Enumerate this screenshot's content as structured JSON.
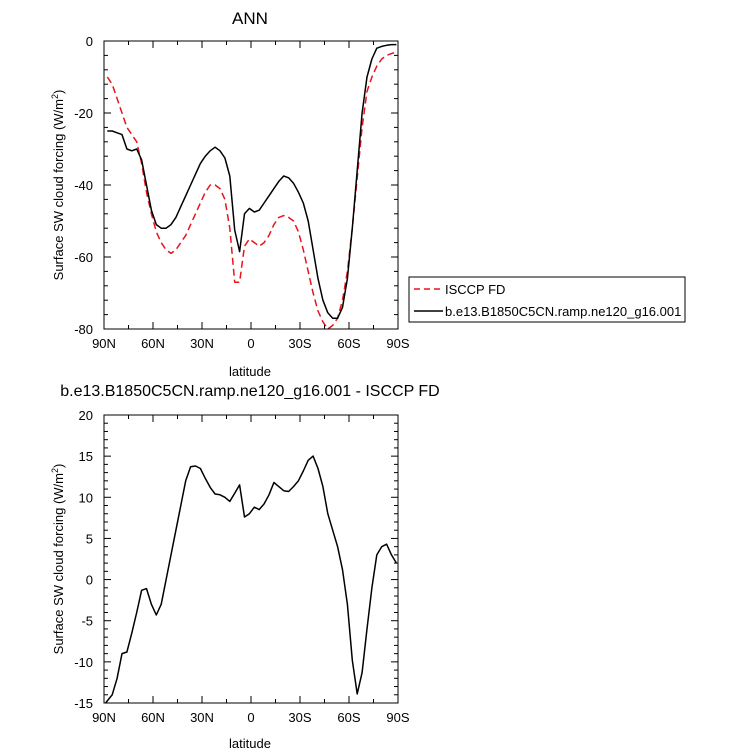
{
  "chart_data": [
    {
      "type": "line",
      "title": "ANN",
      "xlabel": "latitude",
      "ylabel": "Surface SW cloud forcing (W/m",
      "ylabel_sup": "2",
      "ylabel_close": ")",
      "xlim": [
        90,
        -90
      ],
      "ylim": [
        -80,
        0
      ],
      "xticks": [
        90,
        60,
        30,
        0,
        -30,
        -60,
        -90
      ],
      "xtick_labels": [
        "90N",
        "60N",
        "30N",
        "0",
        "30S",
        "60S",
        "90S"
      ],
      "yticks": [
        0,
        -20,
        -40,
        -60,
        -80
      ],
      "ytick_labels": [
        "0",
        "-20",
        "-40",
        "-60",
        "-80"
      ],
      "grid": false,
      "legend_position": "right",
      "series": [
        {
          "name": "ISCCP FD",
          "color": "#e8141c",
          "dash": "dashed",
          "x": [
            88,
            85,
            82,
            79,
            76,
            73,
            70,
            67,
            64,
            61,
            58,
            55,
            52,
            49,
            46,
            43,
            40,
            37,
            34,
            31,
            28,
            25,
            22,
            19,
            16,
            13,
            10,
            7,
            4,
            1,
            -2,
            -5,
            -8,
            -11,
            -14,
            -17,
            -20,
            -23,
            -26,
            -29,
            -32,
            -35,
            -38,
            -41,
            -44,
            -47,
            -50,
            -53,
            -56,
            -59,
            -62,
            -65,
            -68,
            -71,
            -74,
            -77,
            -80,
            -83,
            -86,
            -89
          ],
          "y": [
            -10,
            -12,
            -16,
            -20,
            -24,
            -26,
            -28,
            -34,
            -42,
            -48,
            -53,
            -56,
            -58,
            -59,
            -58,
            -56,
            -54,
            -51,
            -48,
            -45,
            -42,
            -40,
            -40,
            -41,
            -44,
            -52,
            -67,
            -67,
            -57,
            -55,
            -56,
            -57,
            -56,
            -54,
            -51,
            -49,
            -48.5,
            -49,
            -50,
            -53,
            -58,
            -64,
            -70,
            -75,
            -78,
            -80,
            -79,
            -77,
            -72,
            -64,
            -52,
            -38,
            -24,
            -14,
            -10,
            -7,
            -5,
            -4,
            -3.5,
            -3
          ]
        },
        {
          "name": "b.e13.B1850C5CN.ramp.ne120_g16.001",
          "color": "#000000",
          "dash": "solid",
          "x": [
            88,
            85,
            82,
            79,
            76,
            73,
            70,
            67,
            64,
            61,
            58,
            55,
            52,
            49,
            46,
            43,
            40,
            37,
            34,
            31,
            28,
            25,
            22,
            19,
            16,
            13,
            10,
            7,
            4,
            1,
            -2,
            -5,
            -8,
            -11,
            -14,
            -17,
            -20,
            -23,
            -26,
            -29,
            -32,
            -35,
            -38,
            -41,
            -44,
            -47,
            -50,
            -53,
            -56,
            -59,
            -62,
            -65,
            -68,
            -71,
            -74,
            -77,
            -80,
            -83,
            -86,
            -89
          ],
          "y": [
            -25,
            -25,
            -25.5,
            -26,
            -30,
            -30.5,
            -30,
            -33,
            -40,
            -47,
            -51,
            -52,
            -52,
            -51,
            -49,
            -46,
            -43,
            -40,
            -37,
            -34,
            -32,
            -30.5,
            -29.5,
            -30.5,
            -32.5,
            -37.5,
            -52.5,
            -58.5,
            -48,
            -46.5,
            -47.5,
            -47,
            -45,
            -43,
            -41,
            -39,
            -37.5,
            -38,
            -39.5,
            -42,
            -45,
            -50,
            -58,
            -66,
            -72,
            -75.5,
            -77,
            -77,
            -74,
            -66,
            -52,
            -36,
            -20,
            -10,
            -5,
            -2,
            -1.5,
            -1.2,
            -1,
            -1
          ]
        }
      ]
    },
    {
      "type": "line",
      "title": "b.e13.B1850C5CN.ramp.ne120_g16.001 - ISCCP FD",
      "xlabel": "latitude",
      "ylabel": "Surface SW cloud forcing (W/m",
      "ylabel_sup": "2",
      "ylabel_close": ")",
      "xlim": [
        90,
        -90
      ],
      "ylim": [
        -15,
        20
      ],
      "xticks": [
        90,
        60,
        30,
        0,
        -30,
        -60,
        -90
      ],
      "xtick_labels": [
        "90N",
        "60N",
        "30N",
        "0",
        "30S",
        "60S",
        "90S"
      ],
      "yticks": [
        20,
        15,
        10,
        5,
        0,
        -5,
        -10,
        -15
      ],
      "ytick_labels": [
        "20",
        "15",
        "10",
        "5",
        "0",
        "-5",
        "-10",
        "-15"
      ],
      "grid": false,
      "series": [
        {
          "color": "#000000",
          "dash": "solid",
          "x": [
            89,
            87,
            85,
            82,
            79,
            76,
            73,
            70,
            67,
            64,
            61,
            58,
            55,
            52,
            49,
            46,
            43,
            40,
            37,
            34,
            31,
            28,
            25,
            22,
            19,
            16,
            13,
            10,
            7,
            4,
            1,
            -2,
            -5,
            -8,
            -11,
            -14,
            -17,
            -20,
            -23,
            -26,
            -29,
            -32,
            -35,
            -38,
            -41,
            -44,
            -47,
            -50,
            -53,
            -56,
            -59,
            -62,
            -65,
            -68,
            -71,
            -74,
            -77,
            -80,
            -83,
            -86,
            -89
          ],
          "y": [
            -15,
            -14.5,
            -14,
            -12,
            -9,
            -8.8,
            -6.5,
            -4,
            -1.3,
            -1.1,
            -3,
            -4.3,
            -3,
            0,
            3,
            6,
            9,
            12,
            13.7,
            13.8,
            13.5,
            12.3,
            11.2,
            10.4,
            10.3,
            10,
            9.5,
            10.5,
            11.5,
            7.6,
            8,
            8.8,
            8.5,
            9.2,
            10.3,
            11.8,
            11.3,
            10.8,
            10.7,
            11.3,
            12,
            13.2,
            14.5,
            15,
            13.5,
            11.3,
            8,
            6,
            4,
            1.2,
            -3,
            -9.8,
            -13.9,
            -11.3,
            -6,
            -1,
            3,
            4,
            4.3,
            3,
            2
          ]
        }
      ]
    }
  ],
  "legend": {
    "entries": [
      "ISCCP FD",
      "b.e13.B1850C5CN.ramp.ne120_g16.001"
    ]
  }
}
